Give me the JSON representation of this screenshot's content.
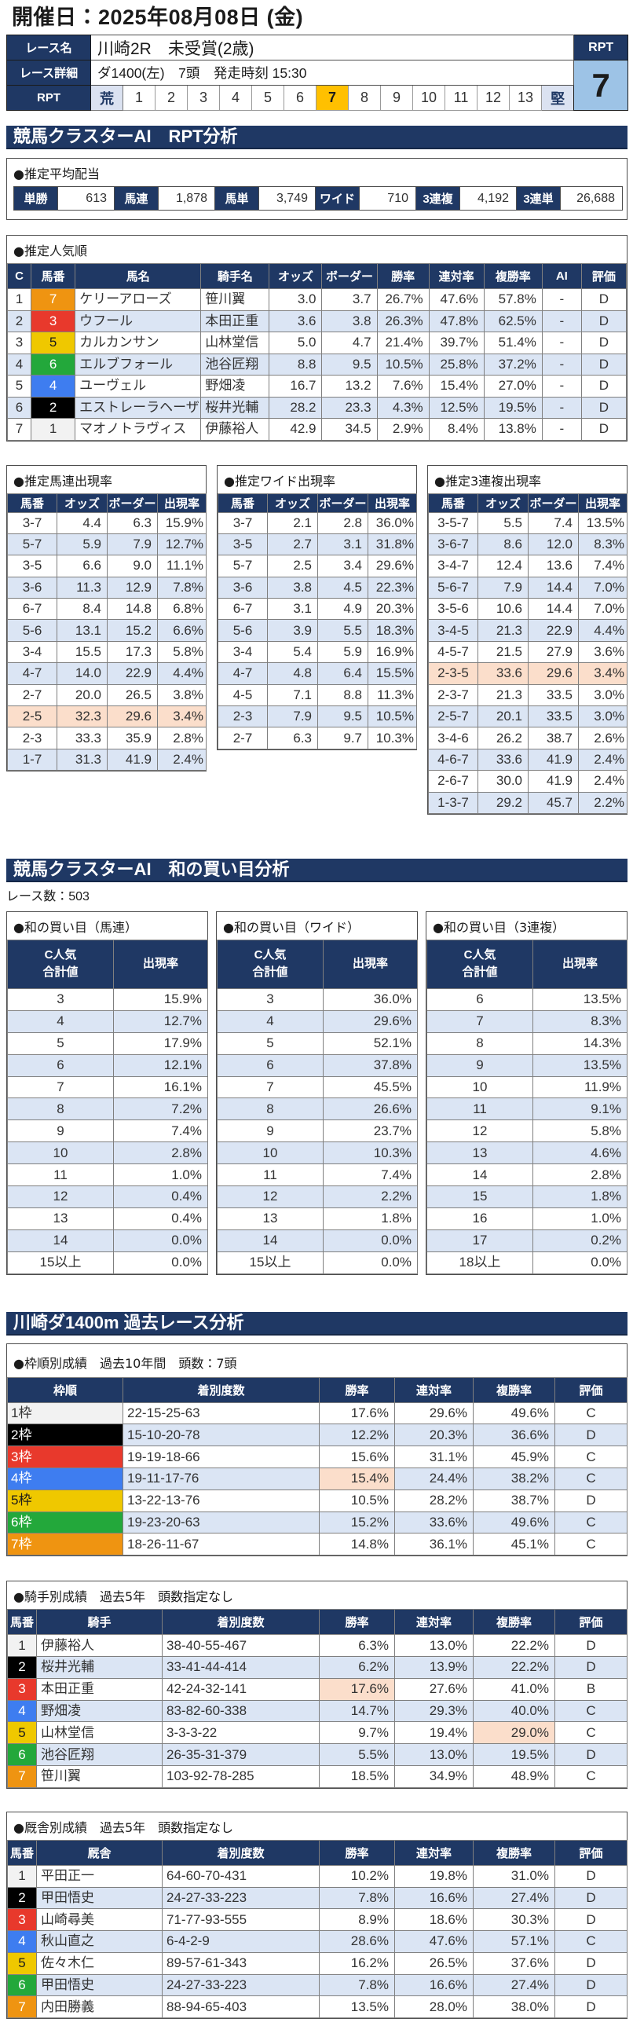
{
  "page": {
    "date_heading": "開催日：2025年08月08日 (金)"
  },
  "race_info": {
    "name_label": "レース名",
    "name": "川崎2R　未受賞(2歳)",
    "detail_label": "レース詳細",
    "detail": "ダ1400(左)　7頭　発走時刻 15:30",
    "rpt_label": "RPT",
    "rpt_scale_left": "荒",
    "rpt_scale_right": "堅",
    "rpt_numbers": [
      "1",
      "2",
      "3",
      "4",
      "5",
      "6",
      "7",
      "8",
      "9",
      "10",
      "11",
      "12",
      "13"
    ],
    "rpt_selected": "7",
    "rpt_box_label": "RPT",
    "rpt_box_value": "7"
  },
  "sections": {
    "rpt_analysis_title": "競馬クラスターAI　RPT分析",
    "wa_analysis_title": "競馬クラスターAI　和の買い目分析",
    "past_analysis_title": "川崎ダ1400m 過去レース分析"
  },
  "payout": {
    "title": "●推定平均配当",
    "items": [
      {
        "label": "単勝",
        "value": "613"
      },
      {
        "label": "馬連",
        "value": "1,878"
      },
      {
        "label": "馬単",
        "value": "3,749"
      },
      {
        "label": "ワイド",
        "value": "710"
      },
      {
        "label": "3連複",
        "value": "4,192"
      },
      {
        "label": "3連単",
        "value": "26,688"
      }
    ]
  },
  "colors": {
    "accent_navy": "#1f3864",
    "band_blue": "#dbe5f4",
    "highlight_pink": "#fbdecb",
    "selected_amber": "#ffc000",
    "rpt_value_blue": "#9dc3e6",
    "umaban": {
      "1": {
        "bg": "#f2f2f2",
        "fg": "#333333"
      },
      "2": {
        "bg": "#000000",
        "fg": "#ffffff"
      },
      "3": {
        "bg": "#e8392c",
        "fg": "#ffffff"
      },
      "4": {
        "bg": "#3e7df0",
        "fg": "#ffffff"
      },
      "5": {
        "bg": "#efc800",
        "fg": "#1b1b1b"
      },
      "6": {
        "bg": "#23a83b",
        "fg": "#ffffff"
      },
      "7": {
        "bg": "#ef9411",
        "fg": "#ffffff"
      }
    }
  },
  "popularity": {
    "title": "●推定人気順",
    "headers": [
      "C",
      "馬番",
      "馬名",
      "騎手名",
      "オッズ",
      "ボーダー",
      "勝率",
      "連対率",
      "複勝率",
      "AI",
      "評価"
    ],
    "rows": [
      {
        "c": "1",
        "num": "7",
        "horse": "ケリーアローズ",
        "jockey": "笹川翼",
        "odds": "3.0",
        "border": "3.7",
        "win": "26.7%",
        "ren": "47.6%",
        "fuku": "57.8%",
        "ai": "-",
        "eval": "D"
      },
      {
        "c": "2",
        "num": "3",
        "horse": "ウフール",
        "jockey": "本田正重",
        "odds": "3.6",
        "border": "3.8",
        "win": "26.3%",
        "ren": "47.8%",
        "fuku": "62.5%",
        "ai": "-",
        "eval": "D"
      },
      {
        "c": "3",
        "num": "5",
        "horse": "カルカンサン",
        "jockey": "山林堂信",
        "odds": "5.0",
        "border": "4.7",
        "win": "21.4%",
        "ren": "39.7%",
        "fuku": "51.4%",
        "ai": "-",
        "eval": "D"
      },
      {
        "c": "4",
        "num": "6",
        "horse": "エルブフォール",
        "jockey": "池谷匠翔",
        "odds": "8.8",
        "border": "9.5",
        "win": "10.5%",
        "ren": "25.8%",
        "fuku": "37.2%",
        "ai": "-",
        "eval": "D"
      },
      {
        "c": "5",
        "num": "4",
        "horse": "ユーヴェル",
        "jockey": "野畑凌",
        "odds": "16.7",
        "border": "13.2",
        "win": "7.6%",
        "ren": "15.4%",
        "fuku": "27.0%",
        "ai": "-",
        "eval": "D"
      },
      {
        "c": "6",
        "num": "2",
        "horse": "エストレーラヘーザ",
        "jockey": "桜井光輔",
        "odds": "28.2",
        "border": "23.3",
        "win": "4.3%",
        "ren": "12.5%",
        "fuku": "19.5%",
        "ai": "-",
        "eval": "D"
      },
      {
        "c": "7",
        "num": "1",
        "horse": "マオノトラヴィス",
        "jockey": "伊藤裕人",
        "odds": "42.9",
        "border": "34.5",
        "win": "2.9%",
        "ren": "8.4%",
        "fuku": "13.8%",
        "ai": "-",
        "eval": "D"
      }
    ]
  },
  "umaren_table": {
    "title": "●推定馬連出現率",
    "headers": [
      "馬番",
      "オッズ",
      "ボーダー",
      "出現率"
    ],
    "rows": [
      {
        "num": "3-7",
        "odds": "4.4",
        "border": "6.3",
        "rate": "15.9%"
      },
      {
        "num": "5-7",
        "odds": "5.9",
        "border": "7.9",
        "rate": "12.7%"
      },
      {
        "num": "3-5",
        "odds": "6.6",
        "border": "9.0",
        "rate": "11.1%"
      },
      {
        "num": "3-6",
        "odds": "11.3",
        "border": "12.9",
        "rate": "7.8%"
      },
      {
        "num": "6-7",
        "odds": "8.4",
        "border": "14.8",
        "rate": "6.8%"
      },
      {
        "num": "5-6",
        "odds": "13.1",
        "border": "15.2",
        "rate": "6.6%"
      },
      {
        "num": "3-4",
        "odds": "15.5",
        "border": "17.3",
        "rate": "5.8%"
      },
      {
        "num": "4-7",
        "odds": "14.0",
        "border": "22.9",
        "rate": "4.4%"
      },
      {
        "num": "2-7",
        "odds": "20.0",
        "border": "26.5",
        "rate": "3.8%"
      },
      {
        "num": "2-5",
        "odds": "32.3",
        "border": "29.6",
        "rate": "3.4%",
        "hl": "*"
      },
      {
        "num": "2-3",
        "odds": "33.3",
        "border": "35.9",
        "rate": "2.8%"
      },
      {
        "num": "1-7",
        "odds": "31.3",
        "border": "41.9",
        "rate": "2.4%"
      }
    ]
  },
  "wide_table": {
    "title": "●推定ワイド出現率",
    "headers": [
      "馬番",
      "オッズ",
      "ボーダー",
      "出現率"
    ],
    "rows": [
      {
        "num": "3-7",
        "odds": "2.1",
        "border": "2.8",
        "rate": "36.0%"
      },
      {
        "num": "3-5",
        "odds": "2.7",
        "border": "3.1",
        "rate": "31.8%"
      },
      {
        "num": "5-7",
        "odds": "2.5",
        "border": "3.4",
        "rate": "29.6%"
      },
      {
        "num": "3-6",
        "odds": "3.8",
        "border": "4.5",
        "rate": "22.3%"
      },
      {
        "num": "6-7",
        "odds": "3.1",
        "border": "4.9",
        "rate": "20.3%"
      },
      {
        "num": "5-6",
        "odds": "3.9",
        "border": "5.5",
        "rate": "18.3%"
      },
      {
        "num": "3-4",
        "odds": "5.4",
        "border": "5.9",
        "rate": "16.9%"
      },
      {
        "num": "4-7",
        "odds": "4.8",
        "border": "6.4",
        "rate": "15.5%"
      },
      {
        "num": "4-5",
        "odds": "7.1",
        "border": "8.8",
        "rate": "11.3%"
      },
      {
        "num": "2-3",
        "odds": "7.9",
        "border": "9.5",
        "rate": "10.5%"
      },
      {
        "num": "2-7",
        "odds": "6.3",
        "border": "9.7",
        "rate": "10.3%"
      }
    ]
  },
  "sanrenpuku_table": {
    "title": "●推定3連複出現率",
    "headers": [
      "馬番",
      "オッズ",
      "ボーダー",
      "出現率"
    ],
    "rows": [
      {
        "num": "3-5-7",
        "odds": "5.5",
        "border": "7.4",
        "rate": "13.5%"
      },
      {
        "num": "3-6-7",
        "odds": "8.6",
        "border": "12.0",
        "rate": "8.3%"
      },
      {
        "num": "3-4-7",
        "odds": "12.4",
        "border": "13.6",
        "rate": "7.4%"
      },
      {
        "num": "5-6-7",
        "odds": "7.9",
        "border": "14.4",
        "rate": "7.0%"
      },
      {
        "num": "3-5-6",
        "odds": "10.6",
        "border": "14.4",
        "rate": "7.0%"
      },
      {
        "num": "3-4-5",
        "odds": "21.3",
        "border": "22.9",
        "rate": "4.4%"
      },
      {
        "num": "4-5-7",
        "odds": "21.5",
        "border": "27.9",
        "rate": "3.6%"
      },
      {
        "num": "2-3-5",
        "odds": "33.6",
        "border": "29.6",
        "rate": "3.4%",
        "hl": "*"
      },
      {
        "num": "2-3-7",
        "odds": "21.3",
        "border": "33.5",
        "rate": "3.0%"
      },
      {
        "num": "2-5-7",
        "odds": "20.1",
        "border": "33.5",
        "rate": "3.0%"
      },
      {
        "num": "3-4-6",
        "odds": "26.2",
        "border": "38.7",
        "rate": "2.6%"
      },
      {
        "num": "4-6-7",
        "odds": "33.6",
        "border": "41.9",
        "rate": "2.4%"
      },
      {
        "num": "2-6-7",
        "odds": "30.0",
        "border": "41.9",
        "rate": "2.4%"
      },
      {
        "num": "1-3-7",
        "odds": "29.2",
        "border": "45.7",
        "rate": "2.2%"
      }
    ]
  },
  "race_count": "レース数：503",
  "wa_umaren": {
    "title": "●和の買い目（馬連）",
    "header_line1": "C人気",
    "header_line2": "合計値",
    "header_rate": "出現率",
    "rows": [
      {
        "sum": "3",
        "rate": "15.9%"
      },
      {
        "sum": "4",
        "rate": "12.7%"
      },
      {
        "sum": "5",
        "rate": "17.9%"
      },
      {
        "sum": "6",
        "rate": "12.1%"
      },
      {
        "sum": "7",
        "rate": "16.1%"
      },
      {
        "sum": "8",
        "rate": "7.2%"
      },
      {
        "sum": "9",
        "rate": "7.4%"
      },
      {
        "sum": "10",
        "rate": "2.8%"
      },
      {
        "sum": "11",
        "rate": "1.0%"
      },
      {
        "sum": "12",
        "rate": "0.4%"
      },
      {
        "sum": "13",
        "rate": "0.4%"
      },
      {
        "sum": "14",
        "rate": "0.0%"
      },
      {
        "sum": "15以上",
        "rate": "0.0%"
      }
    ]
  },
  "wa_wide": {
    "title": "●和の買い目（ワイド）",
    "header_line1": "C人気",
    "header_line2": "合計値",
    "header_rate": "出現率",
    "rows": [
      {
        "sum": "3",
        "rate": "36.0%"
      },
      {
        "sum": "4",
        "rate": "29.6%"
      },
      {
        "sum": "5",
        "rate": "52.1%"
      },
      {
        "sum": "6",
        "rate": "37.8%"
      },
      {
        "sum": "7",
        "rate": "45.5%"
      },
      {
        "sum": "8",
        "rate": "26.6%"
      },
      {
        "sum": "9",
        "rate": "23.7%"
      },
      {
        "sum": "10",
        "rate": "10.3%"
      },
      {
        "sum": "11",
        "rate": "7.4%"
      },
      {
        "sum": "12",
        "rate": "2.2%"
      },
      {
        "sum": "13",
        "rate": "1.8%"
      },
      {
        "sum": "14",
        "rate": "0.0%"
      },
      {
        "sum": "15以上",
        "rate": "0.0%"
      }
    ]
  },
  "wa_sanrenpuku": {
    "title": "●和の買い目（3連複）",
    "header_line1": "C人気",
    "header_line2": "合計値",
    "header_rate": "出現率",
    "rows": [
      {
        "sum": "6",
        "rate": "13.5%"
      },
      {
        "sum": "7",
        "rate": "8.3%"
      },
      {
        "sum": "8",
        "rate": "14.3%"
      },
      {
        "sum": "9",
        "rate": "13.5%"
      },
      {
        "sum": "10",
        "rate": "11.9%"
      },
      {
        "sum": "11",
        "rate": "9.1%"
      },
      {
        "sum": "12",
        "rate": "5.8%"
      },
      {
        "sum": "13",
        "rate": "4.6%"
      },
      {
        "sum": "14",
        "rate": "2.8%"
      },
      {
        "sum": "15",
        "rate": "1.8%"
      },
      {
        "sum": "16",
        "rate": "1.0%"
      },
      {
        "sum": "17",
        "rate": "0.2%"
      },
      {
        "sum": "18以上",
        "rate": "0.0%"
      }
    ]
  },
  "waku_table": {
    "title": "●枠順別成績　過去10年間　頭数：7頭",
    "headers": [
      "枠順",
      "着別度数",
      "勝率",
      "連対率",
      "複勝率",
      "評価"
    ],
    "rows": [
      {
        "num": "1",
        "label": "1枠",
        "record": "22-15-25-63",
        "win": "17.6%",
        "ren": "29.6%",
        "fuku": "49.6%",
        "eval": "C"
      },
      {
        "num": "2",
        "label": "2枠",
        "record": "15-10-20-78",
        "win": "12.2%",
        "ren": "20.3%",
        "fuku": "36.6%",
        "eval": "D"
      },
      {
        "num": "3",
        "label": "3枠",
        "record": "19-19-18-66",
        "win": "15.6%",
        "ren": "31.1%",
        "fuku": "45.9%",
        "eval": "C"
      },
      {
        "num": "4",
        "label": "4枠",
        "record": "19-11-17-76",
        "win": "15.4%",
        "ren": "24.4%",
        "fuku": "38.2%",
        "eval": "C",
        "hl": [
          "win"
        ]
      },
      {
        "num": "5",
        "label": "5枠",
        "record": "13-22-13-76",
        "win": "10.5%",
        "ren": "28.2%",
        "fuku": "38.7%",
        "eval": "D"
      },
      {
        "num": "6",
        "label": "6枠",
        "record": "19-23-20-63",
        "win": "15.2%",
        "ren": "33.6%",
        "fuku": "49.6%",
        "eval": "C"
      },
      {
        "num": "7",
        "label": "7枠",
        "record": "18-26-11-67",
        "win": "14.8%",
        "ren": "36.1%",
        "fuku": "45.1%",
        "eval": "C"
      }
    ]
  },
  "jockey_table": {
    "title": "●騎手別成績　過去5年　頭数指定なし",
    "headers": [
      "馬番",
      "騎手",
      "着別度数",
      "勝率",
      "連対率",
      "複勝率",
      "評価"
    ],
    "rows": [
      {
        "num": "1",
        "name": "伊藤裕人",
        "record": "38-40-55-467",
        "win": "6.3%",
        "ren": "13.0%",
        "fuku": "22.2%",
        "eval": "D"
      },
      {
        "num": "2",
        "name": "桜井光輔",
        "record": "33-41-44-414",
        "win": "6.2%",
        "ren": "13.9%",
        "fuku": "22.2%",
        "eval": "D"
      },
      {
        "num": "3",
        "name": "本田正重",
        "record": "42-24-32-141",
        "win": "17.6%",
        "ren": "27.6%",
        "fuku": "41.0%",
        "eval": "B",
        "hl": [
          "win"
        ]
      },
      {
        "num": "4",
        "name": "野畑凌",
        "record": "83-82-60-338",
        "win": "14.7%",
        "ren": "29.3%",
        "fuku": "40.0%",
        "eval": "C"
      },
      {
        "num": "5",
        "name": "山林堂信",
        "record": "3-3-3-22",
        "win": "9.7%",
        "ren": "19.4%",
        "fuku": "29.0%",
        "eval": "C",
        "hl": [
          "fuku"
        ]
      },
      {
        "num": "6",
        "name": "池谷匠翔",
        "record": "26-35-31-379",
        "win": "5.5%",
        "ren": "13.0%",
        "fuku": "19.5%",
        "eval": "D"
      },
      {
        "num": "7",
        "name": "笹川翼",
        "record": "103-92-78-285",
        "win": "18.5%",
        "ren": "34.9%",
        "fuku": "48.9%",
        "eval": "C"
      }
    ]
  },
  "stable_table": {
    "title": "●厩舎別成績　過去5年　頭数指定なし",
    "headers": [
      "馬番",
      "厩舎",
      "着別度数",
      "勝率",
      "連対率",
      "複勝率",
      "評価"
    ],
    "rows": [
      {
        "num": "1",
        "name": "平田正一",
        "record": "64-60-70-431",
        "win": "10.2%",
        "ren": "19.8%",
        "fuku": "31.0%",
        "eval": "D"
      },
      {
        "num": "2",
        "name": "甲田悟史",
        "record": "24-27-33-223",
        "win": "7.8%",
        "ren": "16.6%",
        "fuku": "27.4%",
        "eval": "D"
      },
      {
        "num": "3",
        "name": "山崎尋美",
        "record": "71-77-93-555",
        "win": "8.9%",
        "ren": "18.6%",
        "fuku": "30.3%",
        "eval": "D"
      },
      {
        "num": "4",
        "name": "秋山直之",
        "record": "6-4-2-9",
        "win": "28.6%",
        "ren": "47.6%",
        "fuku": "57.1%",
        "eval": "C"
      },
      {
        "num": "5",
        "name": "佐々木仁",
        "record": "89-57-61-343",
        "win": "16.2%",
        "ren": "26.5%",
        "fuku": "37.6%",
        "eval": "D"
      },
      {
        "num": "6",
        "name": "甲田悟史",
        "record": "24-27-33-223",
        "win": "7.8%",
        "ren": "16.6%",
        "fuku": "27.4%",
        "eval": "D"
      },
      {
        "num": "7",
        "name": "内田勝義",
        "record": "88-94-65-403",
        "win": "13.5%",
        "ren": "28.0%",
        "fuku": "38.0%",
        "eval": "D"
      }
    ]
  }
}
